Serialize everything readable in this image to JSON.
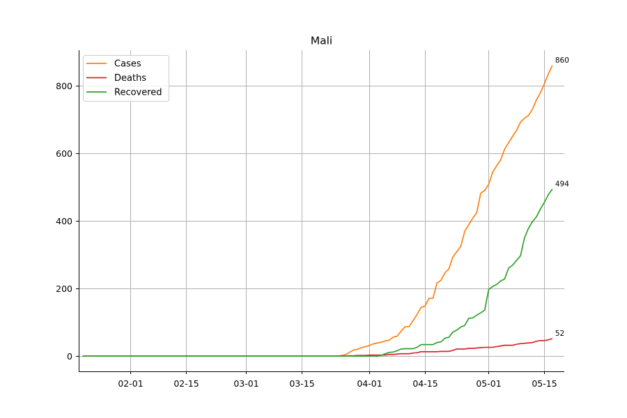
{
  "chart_data": {
    "type": "line",
    "title": "Mali",
    "xlabel": "",
    "ylabel": "",
    "x_start": "01-20",
    "x_end": "05-17",
    "xlim": [
      "01-19",
      "05-20"
    ],
    "ylim": [
      -45,
      905
    ],
    "x_ticks": [
      "02-01",
      "02-15",
      "03-01",
      "03-15",
      "04-01",
      "04-15",
      "05-01",
      "05-15"
    ],
    "y_ticks": [
      0,
      200,
      400,
      600,
      800
    ],
    "grid": true,
    "legend_position": "top-left",
    "series": [
      {
        "name": "Cases",
        "color": "#ff7f0e",
        "end_label": "860",
        "points": [
          [
            "03-24",
            0
          ],
          [
            "03-25",
            2
          ],
          [
            "03-26",
            4
          ],
          [
            "03-27",
            11
          ],
          [
            "03-28",
            18
          ],
          [
            "03-29",
            20
          ],
          [
            "03-30",
            25
          ],
          [
            "03-31",
            28
          ],
          [
            "04-01",
            31
          ],
          [
            "04-02",
            36
          ],
          [
            "04-03",
            39
          ],
          [
            "04-04",
            41
          ],
          [
            "04-05",
            45
          ],
          [
            "04-06",
            47
          ],
          [
            "04-07",
            56
          ],
          [
            "04-08",
            59
          ],
          [
            "04-09",
            74
          ],
          [
            "04-10",
            87
          ],
          [
            "04-11",
            87
          ],
          [
            "04-12",
            105
          ],
          [
            "04-13",
            123
          ],
          [
            "04-14",
            144
          ],
          [
            "04-15",
            148
          ],
          [
            "04-16",
            171
          ],
          [
            "04-17",
            171
          ],
          [
            "04-18",
            216
          ],
          [
            "04-19",
            224
          ],
          [
            "04-20",
            246
          ],
          [
            "04-21",
            258
          ],
          [
            "04-22",
            293
          ],
          [
            "04-23",
            309
          ],
          [
            "04-24",
            325
          ],
          [
            "04-25",
            370
          ],
          [
            "04-26",
            389
          ],
          [
            "04-27",
            408
          ],
          [
            "04-28",
            424
          ],
          [
            "04-29",
            482
          ],
          [
            "04-30",
            490
          ],
          [
            "05-01",
            508
          ],
          [
            "05-02",
            544
          ],
          [
            "05-03",
            563
          ],
          [
            "05-04",
            580
          ],
          [
            "05-05",
            612
          ],
          [
            "05-06",
            631
          ],
          [
            "05-07",
            650
          ],
          [
            "05-08",
            668
          ],
          [
            "05-09",
            692
          ],
          [
            "05-10",
            704
          ],
          [
            "05-11",
            712
          ],
          [
            "05-12",
            730
          ],
          [
            "05-13",
            758
          ],
          [
            "05-14",
            779
          ],
          [
            "05-15",
            806
          ],
          [
            "05-16",
            835
          ],
          [
            "05-17",
            860
          ]
        ]
      },
      {
        "name": "Deaths",
        "color": "#d62728",
        "end_label": "52",
        "points": [
          [
            "03-26",
            0
          ],
          [
            "03-27",
            1
          ],
          [
            "03-29",
            2
          ],
          [
            "03-31",
            2
          ],
          [
            "04-01",
            3
          ],
          [
            "04-02",
            3
          ],
          [
            "04-03",
            3
          ],
          [
            "04-04",
            3
          ],
          [
            "04-05",
            3
          ],
          [
            "04-06",
            5
          ],
          [
            "04-07",
            5
          ],
          [
            "04-08",
            6
          ],
          [
            "04-09",
            7
          ],
          [
            "04-10",
            7
          ],
          [
            "04-11",
            7
          ],
          [
            "04-12",
            9
          ],
          [
            "04-13",
            10
          ],
          [
            "04-14",
            13
          ],
          [
            "04-15",
            13
          ],
          [
            "04-16",
            13
          ],
          [
            "04-17",
            13
          ],
          [
            "04-18",
            13
          ],
          [
            "04-19",
            14
          ],
          [
            "04-20",
            14
          ],
          [
            "04-21",
            14
          ],
          [
            "04-22",
            17
          ],
          [
            "04-23",
            21
          ],
          [
            "04-24",
            21
          ],
          [
            "04-25",
            21
          ],
          [
            "04-26",
            23
          ],
          [
            "04-27",
            23
          ],
          [
            "04-28",
            24
          ],
          [
            "04-29",
            25
          ],
          [
            "04-30",
            26
          ],
          [
            "05-01",
            26
          ],
          [
            "05-02",
            26
          ],
          [
            "05-03",
            28
          ],
          [
            "05-04",
            30
          ],
          [
            "05-05",
            32
          ],
          [
            "05-06",
            32
          ],
          [
            "05-07",
            32
          ],
          [
            "05-08",
            35
          ],
          [
            "05-09",
            37
          ],
          [
            "05-10",
            38
          ],
          [
            "05-11",
            39
          ],
          [
            "05-12",
            40
          ],
          [
            "05-13",
            44
          ],
          [
            "05-14",
            46
          ],
          [
            "05-15",
            46
          ],
          [
            "05-16",
            48
          ],
          [
            "05-17",
            52
          ]
        ]
      },
      {
        "name": "Recovered",
        "color": "#2ca02c",
        "end_label": "494",
        "points": [
          [
            "01-20",
            0
          ],
          [
            "03-27",
            0
          ],
          [
            "03-28",
            0
          ],
          [
            "03-30",
            0
          ],
          [
            "04-03",
            0
          ],
          [
            "04-04",
            2
          ],
          [
            "04-05",
            7
          ],
          [
            "04-06",
            11
          ],
          [
            "04-07",
            12
          ],
          [
            "04-08",
            16
          ],
          [
            "04-09",
            21
          ],
          [
            "04-10",
            22
          ],
          [
            "04-11",
            22
          ],
          [
            "04-12",
            22
          ],
          [
            "04-13",
            26
          ],
          [
            "04-14",
            34
          ],
          [
            "04-15",
            34
          ],
          [
            "04-16",
            34
          ],
          [
            "04-17",
            34
          ],
          [
            "04-18",
            40
          ],
          [
            "04-19",
            42
          ],
          [
            "04-20",
            53
          ],
          [
            "04-21",
            56
          ],
          [
            "04-22",
            71
          ],
          [
            "04-23",
            77
          ],
          [
            "04-24",
            86
          ],
          [
            "04-25",
            91
          ],
          [
            "04-26",
            112
          ],
          [
            "04-27",
            113
          ],
          [
            "04-28",
            121
          ],
          [
            "04-29",
            128
          ],
          [
            "04-30",
            136
          ],
          [
            "05-01",
            197
          ],
          [
            "05-02",
            206
          ],
          [
            "05-03",
            212
          ],
          [
            "05-04",
            222
          ],
          [
            "05-05",
            228
          ],
          [
            "05-06",
            260
          ],
          [
            "05-07",
            269
          ],
          [
            "05-08",
            283
          ],
          [
            "05-09",
            297
          ],
          [
            "05-10",
            350
          ],
          [
            "05-11",
            378
          ],
          [
            "05-12",
            398
          ],
          [
            "05-13",
            412
          ],
          [
            "05-14",
            435
          ],
          [
            "05-15",
            455
          ],
          [
            "05-16",
            478
          ],
          [
            "05-17",
            494
          ]
        ]
      }
    ]
  }
}
